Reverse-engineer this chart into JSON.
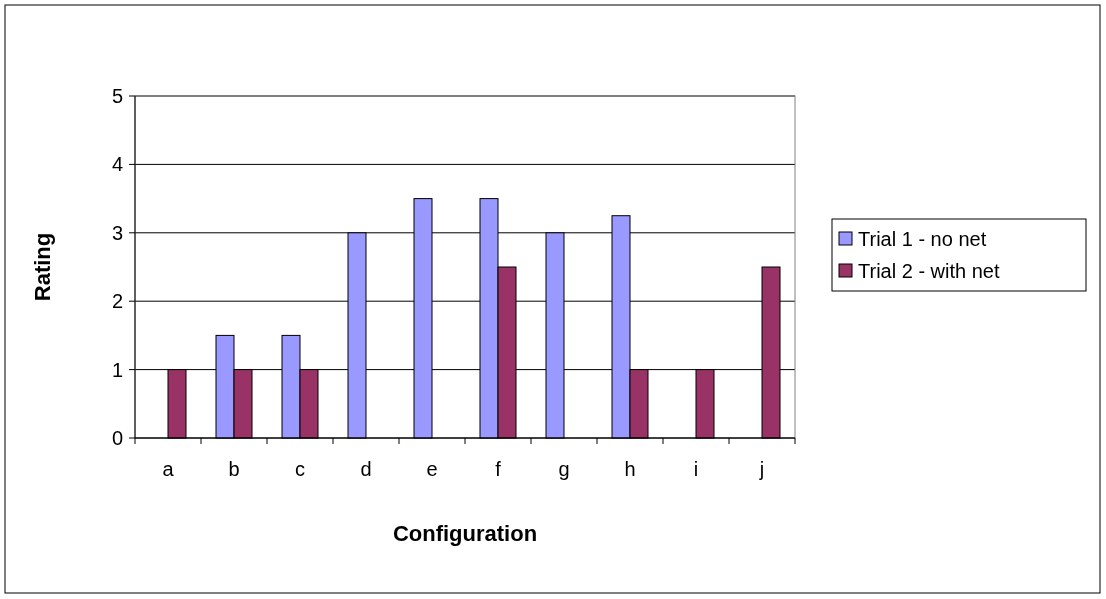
{
  "chart_data": {
    "type": "bar",
    "xlabel": "Configuration",
    "ylabel": "Rating",
    "categories": [
      "a",
      "b",
      "c",
      "d",
      "e",
      "f",
      "g",
      "h",
      "i",
      "j"
    ],
    "series": [
      {
        "name": "Trial 1 - no net",
        "color": "#9999ff",
        "values": [
          null,
          1.5,
          1.5,
          3,
          3.5,
          3.5,
          3,
          3.25,
          null,
          null
        ]
      },
      {
        "name": "Trial 2 - with net",
        "color": "#993366",
        "values": [
          1,
          1,
          1,
          null,
          null,
          2.5,
          null,
          1,
          1,
          2.5
        ]
      }
    ],
    "ylim": [
      0,
      5
    ],
    "yticks": [
      0,
      1,
      2,
      3,
      4,
      5
    ],
    "grid": "y",
    "legend": "right"
  }
}
